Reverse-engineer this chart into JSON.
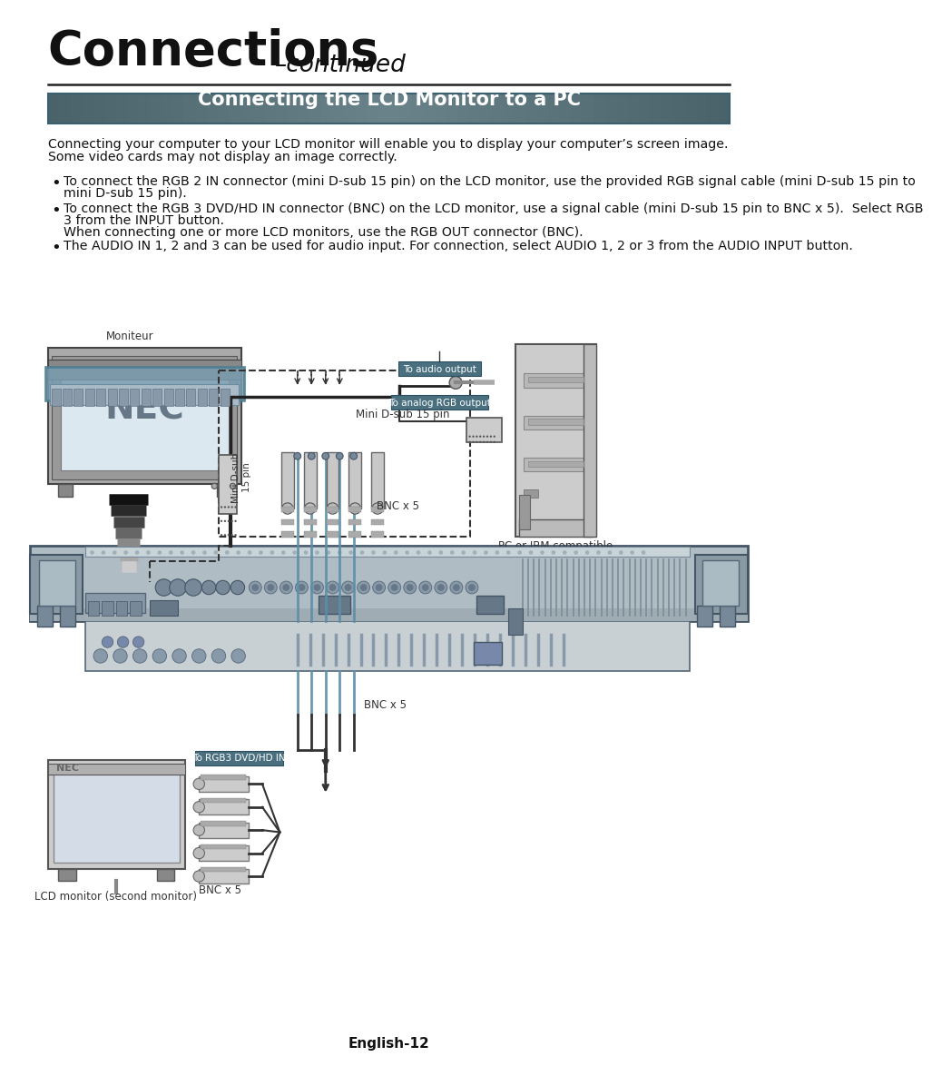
{
  "title_bold": "Connections",
  "title_italic": "–continued",
  "section_header": "Connecting the LCD Monitor to a PC",
  "header_bg_color_center": "#6a8e98",
  "header_bg_color_edge": "#4a6e78",
  "header_text_color": "#ffffff",
  "intro_line1": "Connecting your computer to your LCD monitor will enable you to display your computer’s screen image.",
  "intro_line2": "Some video cards may not display an image correctly.",
  "bullet1_line1": "To connect the RGB 2 IN connector (mini D-sub 15 pin) on the LCD monitor, use the provided RGB signal cable (mini D-sub 15 pin to",
  "bullet1_line2": "mini D-sub 15 pin).",
  "bullet2_line1": "To connect the RGB 3 DVD/HD IN connector (BNC) on the LCD monitor, use a signal cable (mini D-sub 15 pin to BNC x 5).  Select RGB",
  "bullet2_line2": "3 from the INPUT button.",
  "bullet2_line3": "When connecting one or more LCD monitors, use the RGB OUT connector (BNC).",
  "bullet3": "The AUDIO IN 1, 2 and 3 can be used for audio input. For connection, select AUDIO 1, 2 or 3 from the AUDIO INPUT button.",
  "footer_text": "English-12",
  "label_moniteur": "Moniteur",
  "label_to_audio": "To audio output",
  "label_to_analog": "To analog RGB output",
  "label_mini_dsub": "Mini D-sub 15 pin",
  "label_mini_dsub_rot": "Mini D-sub\n15 pin",
  "label_bnc_x5_a": "BNC x 5",
  "label_bnc_x5_b": "BNC x 5",
  "label_bnc_x5_c": "BNC x 5",
  "label_pc": "PC or IBM compatible",
  "label_to_rgb3": "To RGB3 DVD/HD IN",
  "label_lcd2": "LCD monitor (second monitor)",
  "bg": "#ffffff",
  "fg": "#111111",
  "rack_fill": "#b0bec5",
  "rack_edge": "#546e7a",
  "mon_frame_fill": "#b8b8b8",
  "mon_screen_fill": "#dce8f0",
  "pc_fill": "#c8c8c8",
  "cable_blue": "#5b8fa8",
  "label_box_fill": "#4a7080",
  "stand_colors": [
    "#111111",
    "#333333",
    "#555555",
    "#777777",
    "#999999",
    "#aaaaaa",
    "#bbbbbb"
  ]
}
